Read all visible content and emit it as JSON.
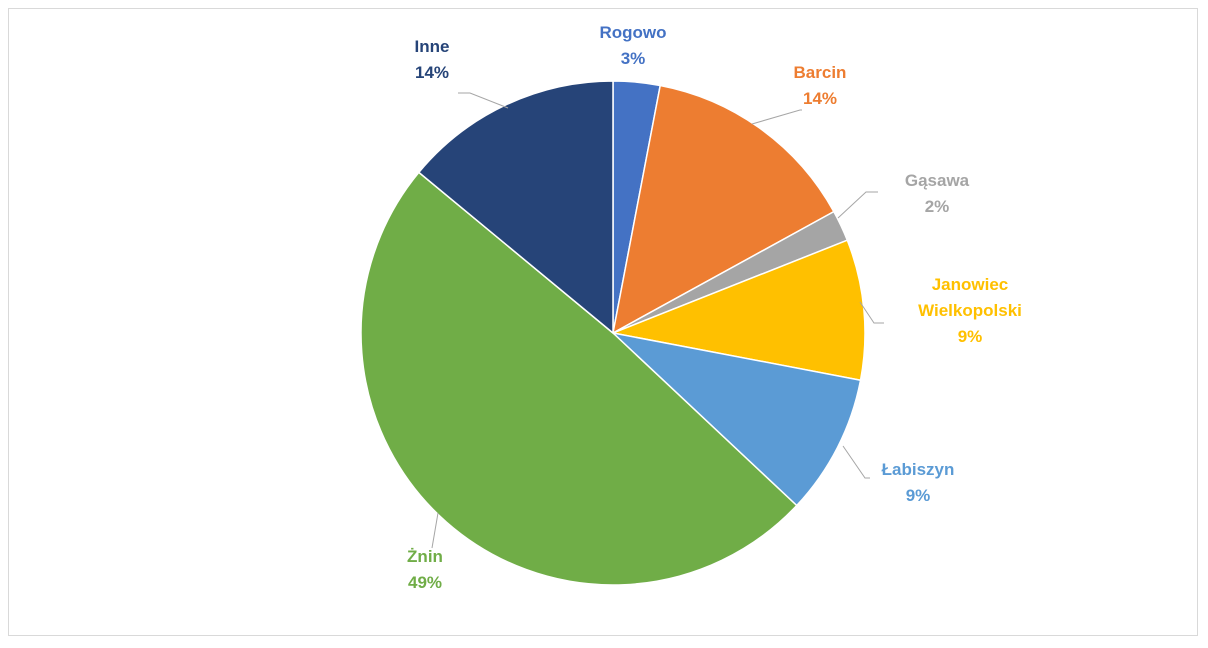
{
  "chart_data": {
    "type": "pie",
    "slices": [
      {
        "name": "Rogowo",
        "value": 3,
        "label": "3%",
        "color": "#4472C4"
      },
      {
        "name": "Barcin",
        "value": 14,
        "label": "14%",
        "color": "#ED7D31"
      },
      {
        "name": "Gąsawa",
        "value": 2,
        "label": "2%",
        "color": "#A5A5A5"
      },
      {
        "name": "Janowiec Wielkopolski",
        "value": 9,
        "label": "9%",
        "color": "#FFC000"
      },
      {
        "name": "Łabiszyn",
        "value": 9,
        "label": "9%",
        "color": "#5B9BD5"
      },
      {
        "name": "Żnin",
        "value": 49,
        "label": "49%",
        "color": "#70AD47"
      },
      {
        "name": "Inne",
        "value": 14,
        "label": "14%",
        "color": "#264478"
      }
    ],
    "label_position": "outside with leader lines",
    "legend": "none"
  }
}
